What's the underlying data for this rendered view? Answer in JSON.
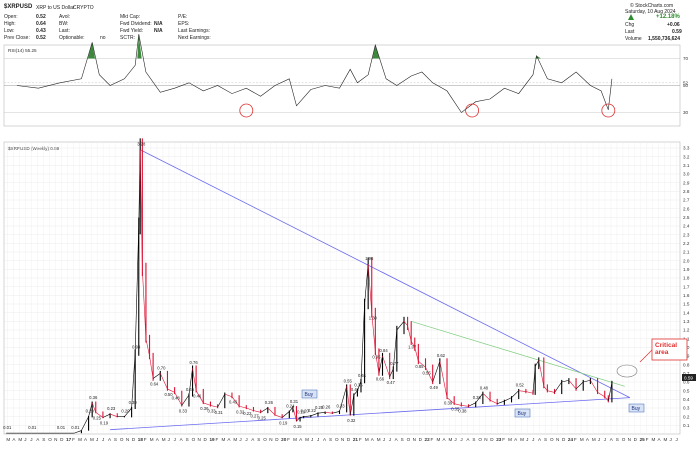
{
  "header": {
    "symbol": "$XRPUSD",
    "name": "XRP to US Dollar",
    "exchange": "CRYPTO",
    "open_label": "Open:",
    "open": "0.52",
    "high_label": "High:",
    "high": "0.64",
    "low_label": "Low:",
    "low": "0.43",
    "prev_label": "Prev Close:",
    "prev": "0.52",
    "avol_label": "Avol:",
    "avol": "",
    "bw_label": "BW:",
    "bw": "",
    "last_label": "Last:",
    "last": "",
    "optionable_label": "Optionable:",
    "optionable": "no",
    "mktcap_label": "Mkt Cap:",
    "mktcap": "",
    "fwddiv_label": "Fwd Dividend:",
    "fwddiv": "N/A",
    "fwdyield_label": "Fwd Yield:",
    "fwdyield": "N/A",
    "sctr_label": "SCTR:",
    "sctr": "",
    "pe_label": "P/E:",
    "pe": "",
    "eps_label": "EPS:",
    "eps": "",
    "lastearn_label": "Last Earnings:",
    "lastearn": "",
    "nextearn_label": "Next Earnings:",
    "nextearn": "",
    "brand": "© StockCharts.com",
    "date": "Saturday, 10 Aug 2024",
    "change_pct": "+12.18%",
    "chg_label": "Chg",
    "chg": "+0.06",
    "last2_label": "Last",
    "last2": "0.59",
    "volume_label": "Volume",
    "volume": "1,550,736,624",
    "arrow_icon": "up-triangle-icon",
    "up_color": "#2e8b2e"
  },
  "rsi_panel": {
    "label": "RSI(14) 55.25",
    "ticks": [
      "70",
      "52",
      "50",
      "30"
    ],
    "current": "52"
  },
  "price_panel": {
    "label": "$XRPUSD (Weekly) 0.59",
    "annotation": "Critical area",
    "buy_label": "Buy",
    "last_badge": "0.59",
    "colors": {
      "trend_blue": "#6b6bf0",
      "trend_green": "#7ccc7c",
      "price": "#000000",
      "price_down": "#dd1133",
      "circle": "#e03030",
      "rsi_fill": "#3d8a3d"
    }
  },
  "chart_data": [
    {
      "type": "line",
      "title": "RSI(14) 55.25",
      "ylim": [
        20,
        80
      ],
      "yticks": [
        30,
        50,
        52,
        70
      ],
      "x": [
        2016.3,
        2016.6,
        2016.9,
        2017.2,
        2017.35,
        2017.45,
        2017.6,
        2017.8,
        2017.95,
        2018.0,
        2018.1,
        2018.3,
        2018.5,
        2018.7,
        2018.9,
        2019.1,
        2019.3,
        2019.5,
        2019.7,
        2019.9,
        2020.1,
        2020.2,
        2020.4,
        2020.6,
        2020.8,
        2020.95,
        2021.05,
        2021.2,
        2021.3,
        2021.45,
        2021.6,
        2021.8,
        2021.95,
        2022.1,
        2022.3,
        2022.5,
        2022.7,
        2022.9,
        2023.1,
        2023.3,
        2023.5,
        2023.55,
        2023.7,
        2023.9,
        2024.1,
        2024.3,
        2024.45,
        2024.55,
        2024.6
      ],
      "series": [
        {
          "values": [
            50,
            48,
            52,
            55,
            82,
            58,
            50,
            55,
            65,
            88,
            60,
            45,
            48,
            52,
            46,
            50,
            44,
            48,
            42,
            50,
            55,
            35,
            47,
            50,
            48,
            62,
            52,
            58,
            80,
            55,
            50,
            57,
            60,
            52,
            46,
            30,
            38,
            40,
            48,
            44,
            58,
            72,
            55,
            52,
            60,
            50,
            46,
            32,
            55
          ]
        }
      ],
      "markers": [
        {
          "x": 2019.5,
          "y": 30
        },
        {
          "x": 2022.65,
          "y": 30
        },
        {
          "x": 2024.55,
          "y": 30
        }
      ]
    },
    {
      "type": "line",
      "title": "$XRPUSD (Weekly) 0.59",
      "ylim": [
        0,
        3.3
      ],
      "yticks": [
        0.1,
        0.2,
        0.3,
        0.4,
        0.5,
        0.6,
        0.7,
        0.8,
        0.9,
        1.0,
        1.1,
        1.2,
        1.3,
        1.4,
        1.5,
        1.6,
        1.7,
        1.8,
        1.9,
        2.0,
        2.1,
        2.2,
        2.3,
        2.4,
        2.5,
        2.6,
        2.7,
        2.8,
        2.9,
        3.0,
        3.1,
        3.2,
        3.3
      ],
      "xticks": [
        "M",
        "A",
        "M",
        "J",
        "J",
        "A",
        "S",
        "O",
        "N",
        "D",
        "17",
        "F",
        "M",
        "A",
        "M",
        "J",
        "J",
        "A",
        "S",
        "O",
        "N",
        "D",
        "18",
        "F",
        "M",
        "A",
        "M",
        "J",
        "J",
        "A",
        "S",
        "O",
        "N",
        "D",
        "19",
        "F",
        "M",
        "A",
        "M",
        "J",
        "J",
        "A",
        "S",
        "O",
        "N",
        "D",
        "20",
        "F",
        "M",
        "A",
        "M",
        "J",
        "J",
        "A",
        "S",
        "O",
        "N",
        "D",
        "21",
        "F",
        "M",
        "A",
        "M",
        "J",
        "J",
        "A",
        "S",
        "O",
        "N",
        "D",
        "22",
        "F",
        "M",
        "A",
        "M",
        "J",
        "J",
        "A",
        "S",
        "O",
        "N",
        "D",
        "23",
        "F",
        "M",
        "A",
        "M",
        "J",
        "J",
        "A",
        "S",
        "O",
        "N",
        "D",
        "24",
        "F",
        "M",
        "A",
        "M",
        "J",
        "J",
        "A",
        "S",
        "O",
        "N",
        "D",
        "25",
        "F",
        "M",
        "A",
        "M",
        "J",
        "J"
      ],
      "x": [
        2016.15,
        2016.3,
        2016.5,
        2016.7,
        2016.9,
        2017.0,
        2017.1,
        2017.2,
        2017.3,
        2017.35,
        2017.4,
        2017.5,
        2017.6,
        2017.7,
        2017.8,
        2017.9,
        2017.95,
        2018.0,
        2018.02,
        2018.05,
        2018.1,
        2018.15,
        2018.2,
        2018.3,
        2018.4,
        2018.5,
        2018.6,
        2018.7,
        2018.75,
        2018.8,
        2018.9,
        2019.0,
        2019.1,
        2019.2,
        2019.3,
        2019.4,
        2019.5,
        2019.6,
        2019.7,
        2019.8,
        2019.9,
        2020.0,
        2020.1,
        2020.15,
        2020.2,
        2020.25,
        2020.3,
        2020.4,
        2020.5,
        2020.6,
        2020.7,
        2020.8,
        2020.9,
        2020.95,
        2021.0,
        2021.05,
        2021.1,
        2021.15,
        2021.2,
        2021.25,
        2021.3,
        2021.35,
        2021.4,
        2021.5,
        2021.55,
        2021.6,
        2021.7,
        2021.75,
        2021.8,
        2021.85,
        2021.9,
        2022.0,
        2022.1,
        2022.2,
        2022.3,
        2022.4,
        2022.5,
        2022.6,
        2022.7,
        2022.8,
        2022.9,
        2023.0,
        2023.1,
        2023.2,
        2023.3,
        2023.4,
        2023.5,
        2023.53,
        2023.58,
        2023.65,
        2023.7,
        2023.8,
        2023.9,
        2024.0,
        2024.1,
        2024.2,
        2024.3,
        2024.4,
        2024.5,
        2024.55,
        2024.6
      ],
      "series": [
        {
          "name": "$XRPUSD",
          "values": [
            0.01,
            0.01,
            0.01,
            0.01,
            0.01,
            0.01,
            0.01,
            0.04,
            0.2,
            0.36,
            0.25,
            0.19,
            0.23,
            0.2,
            0.2,
            0.3,
            0.94,
            2.4,
            3.28,
            1.9,
            1.1,
            0.9,
            0.64,
            0.7,
            0.52,
            0.48,
            0.33,
            0.45,
            0.76,
            0.5,
            0.36,
            0.33,
            0.31,
            0.46,
            0.43,
            0.32,
            0.3,
            0.27,
            0.25,
            0.3,
            0.22,
            0.19,
            0.26,
            0.31,
            0.15,
            0.19,
            0.2,
            0.21,
            0.24,
            0.25,
            0.24,
            0.26,
            0.55,
            0.22,
            0.45,
            0.5,
            0.61,
            1.5,
            1.96,
            1.4,
            0.95,
            0.7,
            0.9,
            0.66,
            0.75,
            1.2,
            1.3,
            1.25,
            1.07,
            1.0,
            0.84,
            0.77,
            0.6,
            0.84,
            0.42,
            0.35,
            0.33,
            0.32,
            0.36,
            0.47,
            0.39,
            0.35,
            0.38,
            0.42,
            0.5,
            0.49,
            0.47,
            0.78,
            0.85,
            0.55,
            0.5,
            0.48,
            0.6,
            0.62,
            0.52,
            0.6,
            0.62,
            0.48,
            0.43,
            0.38,
            0.59
          ]
        }
      ],
      "annotations": [
        "0.01",
        "0.01",
        "0.01",
        "0.01",
        "0.20",
        "0.36",
        "0.25",
        "0.19",
        "0.23",
        "0.20",
        "0.30",
        "3.28",
        "0.94",
        "0.64",
        "0.70",
        "0.48",
        "0.33",
        "0.45",
        "0.76",
        "0.50",
        "0.36",
        "0.33",
        "0.31",
        "0.46",
        "0.43",
        "0.32",
        "0.27",
        "0.25",
        "0.22",
        "0.19",
        "0.26",
        "0.31",
        "0.15",
        "0.19",
        "0.20",
        "0.24",
        "0.25",
        "0.26",
        "0.55",
        "0.22",
        "0.61",
        "1.96",
        "0.95",
        "0.66",
        "1.30",
        "1.07",
        "0.84",
        "0.77",
        "0.42",
        "0.35",
        "0.33",
        "0.32",
        "0.47",
        "0.39",
        "0.35",
        "0.38",
        "0.49",
        "0.85",
        "0.55",
        "0.48",
        "0.62",
        "0.52",
        "0.38"
      ]
    }
  ]
}
